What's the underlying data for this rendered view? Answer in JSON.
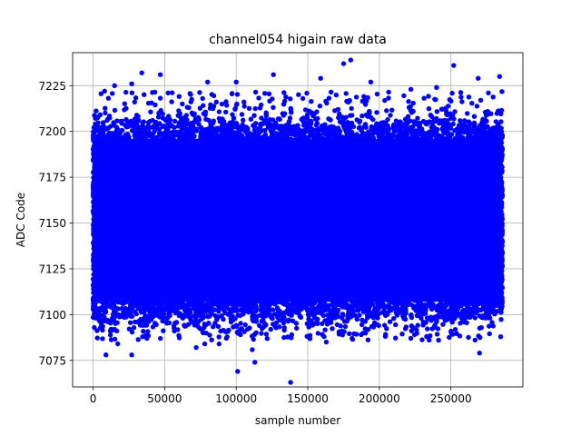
{
  "chart_data": {
    "type": "scatter",
    "title": "channel054 higain raw data",
    "xlabel": "sample number",
    "ylabel": "ADC Code",
    "xlim": [
      -14300,
      300300
    ],
    "ylim": [
      7060.5,
      7243
    ],
    "xticks": [
      0,
      50000,
      100000,
      150000,
      200000,
      250000
    ],
    "xtick_labels": [
      "0",
      "50000",
      "100000",
      "150000",
      "200000",
      "250000"
    ],
    "yticks": [
      7075,
      7100,
      7125,
      7150,
      7175,
      7200,
      7225
    ],
    "ytick_labels": [
      "7075",
      "7100",
      "7125",
      "7150",
      "7175",
      "7200",
      "7225"
    ],
    "grid": true,
    "marker_color": "#0000ff",
    "series": [
      {
        "x_range": [
          0,
          286000
        ],
        "dense_band": [
          7103,
          7200
        ],
        "sparse_upper": [
          7200,
          7222
        ],
        "sparse_lower": [
          7086,
          7103
        ],
        "outliers": [
          {
            "x": 9000,
            "y": 7078
          },
          {
            "x": 27000,
            "y": 7078
          },
          {
            "x": 101000,
            "y": 7069
          },
          {
            "x": 113000,
            "y": 7074
          },
          {
            "x": 138000,
            "y": 7063
          },
          {
            "x": 72000,
            "y": 7082
          },
          {
            "x": 78000,
            "y": 7084
          },
          {
            "x": 88000,
            "y": 7084
          },
          {
            "x": 103000,
            "y": 7089
          },
          {
            "x": 47000,
            "y": 7087
          },
          {
            "x": 163000,
            "y": 7085
          },
          {
            "x": 270000,
            "y": 7079
          },
          {
            "x": 233000,
            "y": 7088
          },
          {
            "x": 34000,
            "y": 7232
          },
          {
            "x": 47000,
            "y": 7231
          },
          {
            "x": 175000,
            "y": 7237
          },
          {
            "x": 180000,
            "y": 7239
          },
          {
            "x": 252000,
            "y": 7236
          },
          {
            "x": 284000,
            "y": 7230
          },
          {
            "x": 269000,
            "y": 7229
          },
          {
            "x": 159000,
            "y": 7229
          },
          {
            "x": 126000,
            "y": 7231
          },
          {
            "x": 100000,
            "y": 7227
          },
          {
            "x": 80000,
            "y": 7227
          },
          {
            "x": 15000,
            "y": 7225
          },
          {
            "x": 27000,
            "y": 7226
          },
          {
            "x": 194000,
            "y": 7227
          },
          {
            "x": 240000,
            "y": 7224
          },
          {
            "x": 8000,
            "y": 7222
          },
          {
            "x": 222000,
            "y": 7223
          }
        ]
      }
    ]
  }
}
